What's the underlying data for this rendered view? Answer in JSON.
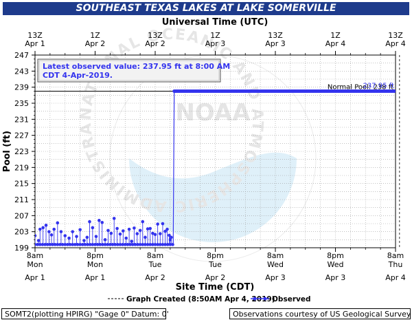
{
  "chart_data": {
    "type": "line",
    "title": "SOUTHEAST TEXAS LAKES AT LAKE SOMERVILLE",
    "top_axis_label": "Universal Time (UTC)",
    "xlabel": "Site Time (CDT)",
    "ylabel": "Pool (ft)",
    "ylim": [
      199,
      247
    ],
    "y_ticks": [
      199,
      203,
      207,
      211,
      215,
      219,
      223,
      227,
      231,
      235,
      239,
      243,
      247
    ],
    "x_range_hours": [
      0,
      72
    ],
    "top_ticks": [
      {
        "hour": 0,
        "line1": "13Z",
        "line2": "Apr 1"
      },
      {
        "hour": 12,
        "line1": "1Z",
        "line2": "Apr 2"
      },
      {
        "hour": 24,
        "line1": "13Z",
        "line2": "Apr 2"
      },
      {
        "hour": 36,
        "line1": "1Z",
        "line2": "Apr 3"
      },
      {
        "hour": 48,
        "line1": "13Z",
        "line2": "Apr 3"
      },
      {
        "hour": 60,
        "line1": "1Z",
        "line2": "Apr 4"
      },
      {
        "hour": 72,
        "line1": "13Z",
        "line2": "Apr 4"
      }
    ],
    "bottom_ticks": [
      {
        "hour": 0,
        "time": "8am",
        "day": "Mon",
        "date": "Apr 1"
      },
      {
        "hour": 12,
        "time": "8pm",
        "day": "Mon",
        "date": "Apr 1"
      },
      {
        "hour": 24,
        "time": "8am",
        "day": "Tue",
        "date": "Apr 2"
      },
      {
        "hour": 36,
        "time": "8pm",
        "day": "Tue",
        "date": "Apr 2"
      },
      {
        "hour": 48,
        "time": "8am",
        "day": "Wed",
        "date": "Apr 3"
      },
      {
        "hour": 60,
        "time": "8pm",
        "day": "Wed",
        "date": "Apr 3"
      },
      {
        "hour": 72,
        "time": "8am",
        "day": "Thu",
        "date": "Apr 4"
      }
    ],
    "graph_created_hour": 72.8,
    "normal_pool": {
      "value": 238,
      "label": "Normal Pool: 238 ft"
    },
    "latest_label": "237.95 ft",
    "latest_box": {
      "line1": "Latest observed value: 237.95 ft at 8:00 AM",
      "line2": "CDT 4-Apr-2019."
    },
    "series": [
      {
        "name": "Observed",
        "color": "#3333ee",
        "segments": [
          {
            "from_hour": 0,
            "to_hour": 27.6,
            "value": 199.8,
            "step_hours": 0.25,
            "spikes": [
              {
                "hour": 0.0,
                "value": 202.0
              },
              {
                "hour": 0.7,
                "value": 200.8
              },
              {
                "hour": 1.0,
                "value": 203.6
              },
              {
                "hour": 1.6,
                "value": 204.0
              },
              {
                "hour": 2.2,
                "value": 204.6
              },
              {
                "hour": 2.8,
                "value": 203.0
              },
              {
                "hour": 3.3,
                "value": 202.2
              },
              {
                "hour": 3.8,
                "value": 203.6
              },
              {
                "hour": 4.5,
                "value": 205.2
              },
              {
                "hour": 5.2,
                "value": 203.0
              },
              {
                "hour": 6.0,
                "value": 202.0
              },
              {
                "hour": 6.8,
                "value": 201.4
              },
              {
                "hour": 7.5,
                "value": 203.0
              },
              {
                "hour": 8.3,
                "value": 201.8
              },
              {
                "hour": 9.0,
                "value": 203.5
              },
              {
                "hour": 9.8,
                "value": 200.8
              },
              {
                "hour": 10.4,
                "value": 201.6
              },
              {
                "hour": 10.9,
                "value": 205.5
              },
              {
                "hour": 11.5,
                "value": 204.0
              },
              {
                "hour": 12.2,
                "value": 201.8
              },
              {
                "hour": 12.8,
                "value": 205.8
              },
              {
                "hour": 13.4,
                "value": 205.3
              },
              {
                "hour": 14.0,
                "value": 201.0
              },
              {
                "hour": 14.6,
                "value": 203.3
              },
              {
                "hour": 15.2,
                "value": 202.6
              },
              {
                "hour": 15.8,
                "value": 206.3
              },
              {
                "hour": 16.4,
                "value": 203.8
              },
              {
                "hour": 17.0,
                "value": 202.4
              },
              {
                "hour": 17.6,
                "value": 203.2
              },
              {
                "hour": 18.2,
                "value": 201.4
              },
              {
                "hour": 18.8,
                "value": 203.6
              },
              {
                "hour": 19.3,
                "value": 200.6
              },
              {
                "hour": 19.8,
                "value": 203.9
              },
              {
                "hour": 20.4,
                "value": 202.5
              },
              {
                "hour": 21.0,
                "value": 203.3
              },
              {
                "hour": 21.5,
                "value": 205.5
              },
              {
                "hour": 22.0,
                "value": 201.6
              },
              {
                "hour": 22.5,
                "value": 203.7
              },
              {
                "hour": 23.0,
                "value": 203.8
              },
              {
                "hour": 23.5,
                "value": 202.6
              },
              {
                "hour": 24.0,
                "value": 202.3
              },
              {
                "hour": 24.5,
                "value": 204.9
              },
              {
                "hour": 25.0,
                "value": 202.5
              },
              {
                "hour": 25.5,
                "value": 205.0
              },
              {
                "hour": 26.0,
                "value": 203.1
              },
              {
                "hour": 26.4,
                "value": 203.6
              },
              {
                "hour": 26.8,
                "value": 202.1
              },
              {
                "hour": 27.0,
                "value": 201.0
              },
              {
                "hour": 27.2,
                "value": 201.6
              }
            ]
          },
          {
            "from_hour": 27.6,
            "to_hour": 27.8,
            "value": 238
          },
          {
            "from_hour": 27.8,
            "to_hour": 72,
            "value": 238,
            "step_hours": 0.25
          }
        ]
      }
    ]
  },
  "legend": {
    "graph_created_label": "Graph Created (8:50AM Apr 4, 2019)",
    "observed_label": "Observed"
  },
  "footer": {
    "left": "SOMT2(plotting HPIRG) \"Gage 0\" Datum: 0'",
    "right": "Observations courtesy of US Geological Survey"
  },
  "watermark": {
    "ring_text": "NATIONAL OCEANIC AND ATMOSPHERIC ADMINISTRATION · U.S. DEPARTMENT OF COMMERCE",
    "center": "NOAA"
  }
}
